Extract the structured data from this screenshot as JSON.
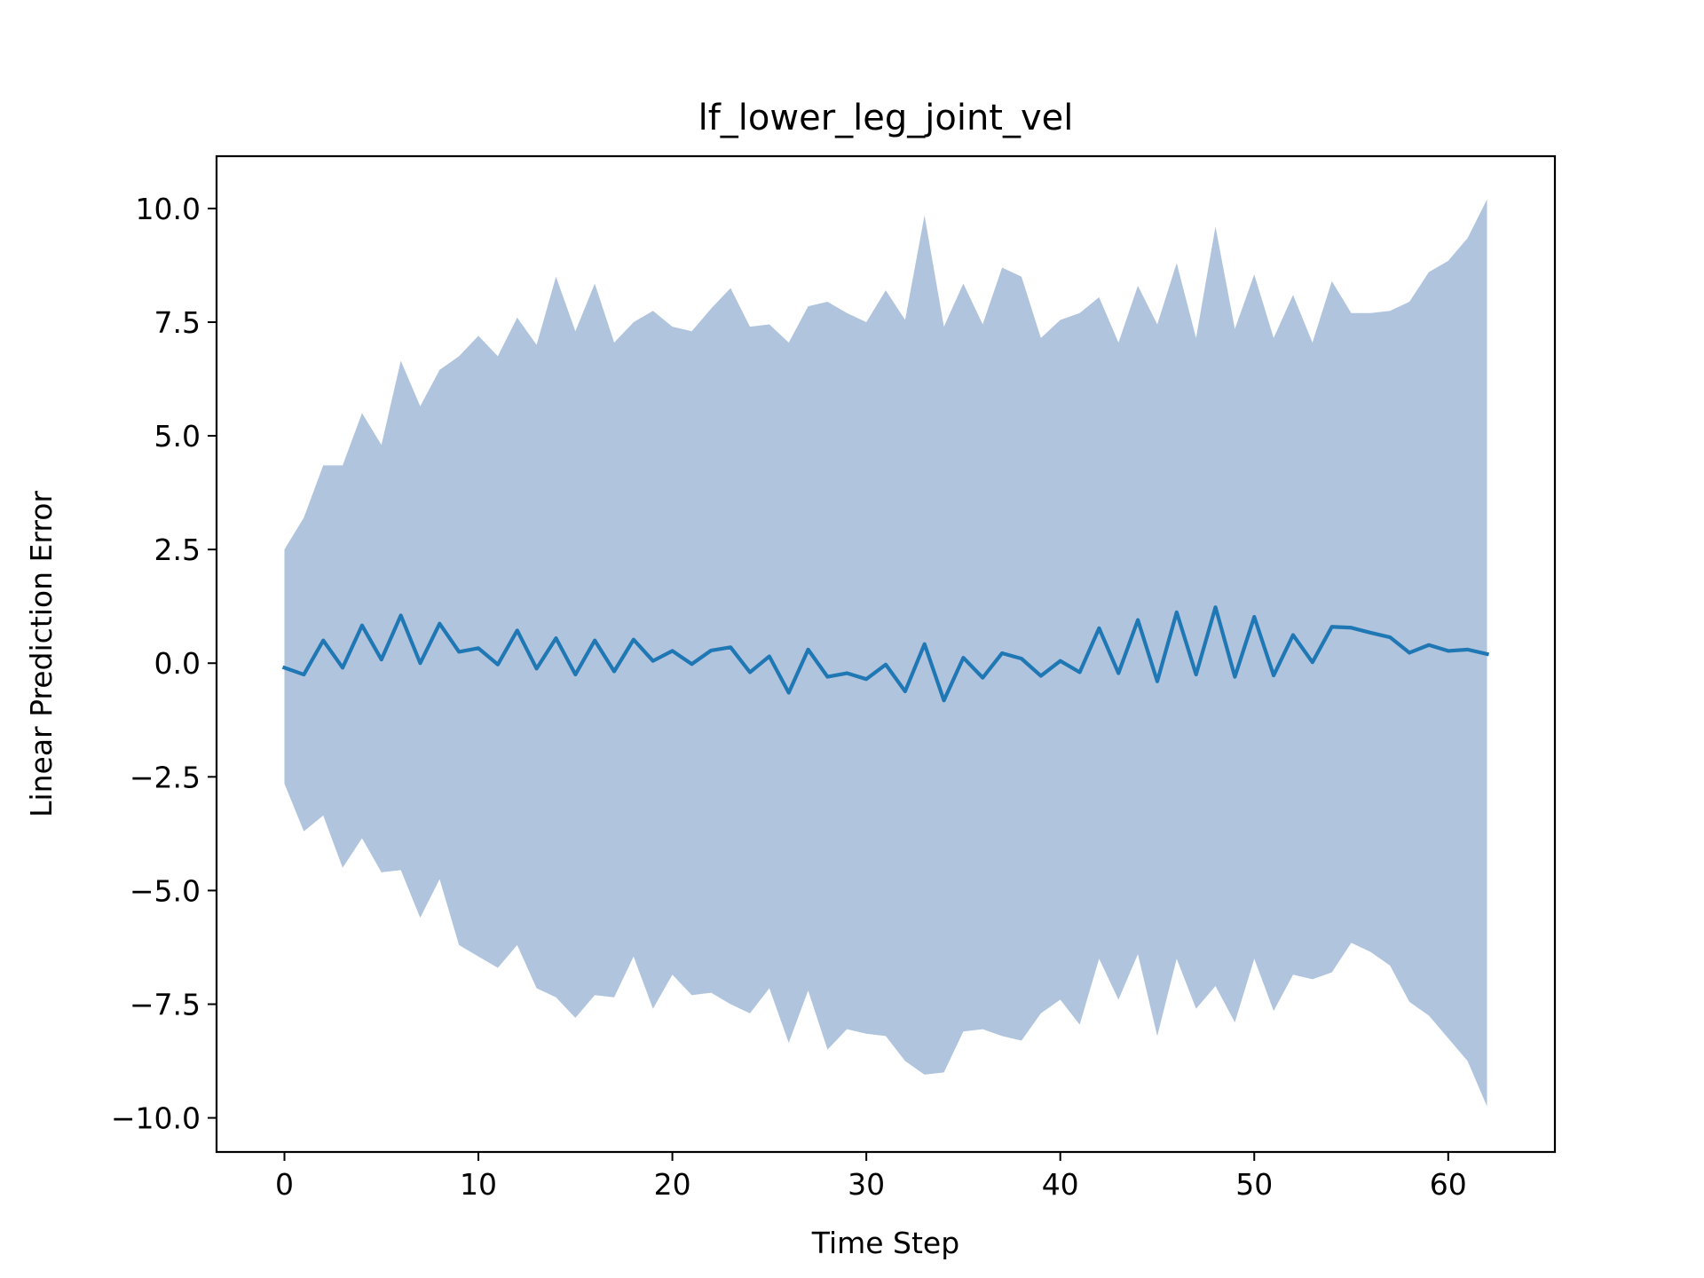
{
  "chart_data": {
    "type": "area",
    "title": "lf_lower_leg_joint_vel",
    "xlabel": "Time Step",
    "ylabel": "Linear Prediction Error",
    "xlim": [
      -3.5,
      65.5
    ],
    "ylim": [
      -10.75,
      11.15
    ],
    "xticks": [
      0,
      10,
      20,
      30,
      40,
      50,
      60
    ],
    "yticks": [
      -10.0,
      -7.5,
      -5.0,
      -2.5,
      0.0,
      2.5,
      5.0,
      7.5,
      10.0
    ],
    "ytick_labels": [
      "−10.0",
      "−7.5",
      "−5.0",
      "−2.5",
      "0.0",
      "2.5",
      "5.0",
      "7.5",
      "10.0"
    ],
    "xtick_labels": [
      "0",
      "10",
      "20",
      "30",
      "40",
      "50",
      "60"
    ],
    "grid": false,
    "x": [
      0,
      1,
      2,
      3,
      4,
      5,
      6,
      7,
      8,
      9,
      10,
      11,
      12,
      13,
      14,
      15,
      16,
      17,
      18,
      19,
      20,
      21,
      22,
      23,
      24,
      25,
      26,
      27,
      28,
      29,
      30,
      31,
      32,
      33,
      34,
      35,
      36,
      37,
      38,
      39,
      40,
      41,
      42,
      43,
      44,
      45,
      46,
      47,
      48,
      49,
      50,
      51,
      52,
      53,
      54,
      55,
      56,
      57,
      58,
      59,
      60,
      61,
      62
    ],
    "series": [
      {
        "role": "mean",
        "color": "#1f77b4",
        "values": [
          -0.1,
          -0.25,
          0.5,
          -0.1,
          0.83,
          0.08,
          1.05,
          0.0,
          0.87,
          0.25,
          0.33,
          -0.03,
          0.72,
          -0.12,
          0.55,
          -0.25,
          0.5,
          -0.18,
          0.52,
          0.05,
          0.27,
          -0.02,
          0.28,
          0.35,
          -0.2,
          0.15,
          -0.65,
          0.3,
          -0.3,
          -0.22,
          -0.35,
          -0.03,
          -0.62,
          0.42,
          -0.82,
          0.12,
          -0.32,
          0.22,
          0.1,
          -0.28,
          0.05,
          -0.2,
          0.77,
          -0.22,
          0.95,
          -0.4,
          1.12,
          -0.25,
          1.23,
          -0.3,
          1.02,
          -0.27,
          0.62,
          0.02,
          0.8,
          0.78,
          0.67,
          0.57,
          0.23,
          0.4,
          0.27,
          0.3,
          0.2
        ]
      },
      {
        "role": "band",
        "color": "#b0c4de",
        "upper": [
          2.5,
          3.2,
          4.35,
          4.35,
          5.5,
          4.8,
          6.65,
          5.65,
          6.45,
          6.75,
          7.2,
          6.75,
          7.6,
          7.0,
          8.5,
          7.3,
          8.35,
          7.05,
          7.5,
          7.75,
          7.4,
          7.3,
          7.8,
          8.25,
          7.4,
          7.45,
          7.05,
          7.85,
          7.95,
          7.7,
          7.5,
          8.2,
          7.55,
          9.85,
          7.4,
          8.35,
          7.45,
          8.7,
          8.5,
          7.15,
          7.55,
          7.7,
          8.05,
          7.05,
          8.3,
          7.45,
          8.8,
          7.15,
          9.6,
          7.35,
          8.55,
          7.15,
          8.1,
          7.05,
          8.4,
          7.7,
          7.7,
          7.75,
          7.95,
          8.6,
          8.85,
          9.35,
          10.2
        ],
        "lower": [
          -2.65,
          -3.7,
          -3.35,
          -4.5,
          -3.85,
          -4.6,
          -4.55,
          -5.6,
          -4.75,
          -6.2,
          -6.45,
          -6.7,
          -6.2,
          -7.15,
          -7.35,
          -7.8,
          -7.3,
          -7.35,
          -6.45,
          -7.6,
          -6.85,
          -7.3,
          -7.25,
          -7.5,
          -7.7,
          -7.15,
          -8.35,
          -7.2,
          -8.5,
          -8.05,
          -8.15,
          -8.2,
          -8.75,
          -9.05,
          -9.0,
          -8.1,
          -8.05,
          -8.2,
          -8.3,
          -7.7,
          -7.4,
          -7.95,
          -6.5,
          -7.4,
          -6.4,
          -8.2,
          -6.5,
          -7.6,
          -7.1,
          -7.9,
          -6.5,
          -7.65,
          -6.85,
          -6.95,
          -6.8,
          -6.15,
          -6.35,
          -6.65,
          -7.45,
          -7.75,
          -8.25,
          -8.75,
          -9.75
        ]
      }
    ]
  }
}
